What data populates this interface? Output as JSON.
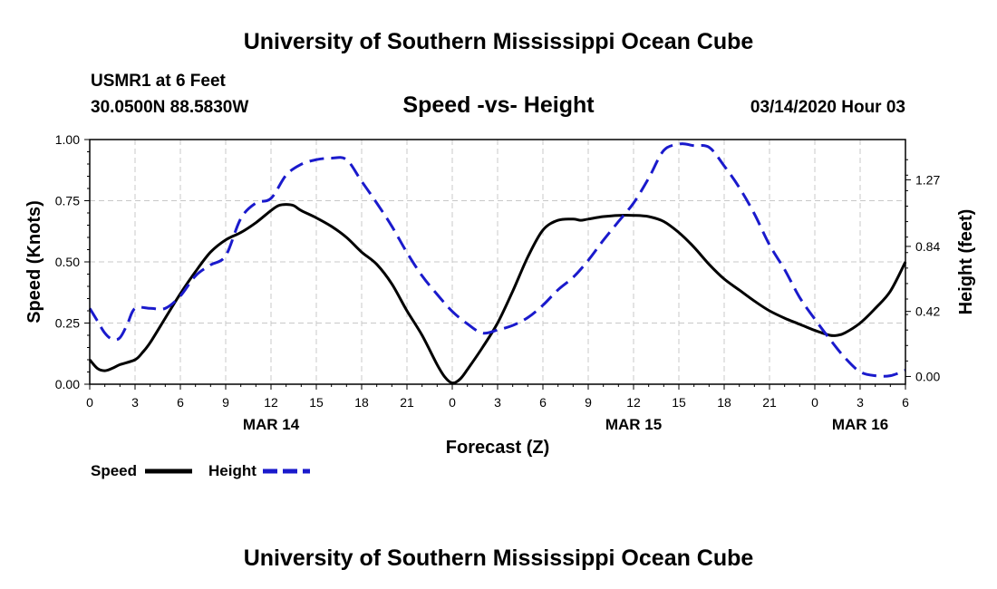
{
  "header": {
    "title": "University of Southern Mississippi Ocean Cube",
    "station": "USMR1 at 6 Feet",
    "coords": "30.0500N 88.5830W",
    "datetime": "03/14/2020 Hour 03"
  },
  "footer": {
    "title": "University of Southern Mississippi Ocean Cube"
  },
  "chart_data": {
    "type": "line",
    "title": "Speed -vs- Height",
    "xlabel": "Forecast (Z)",
    "ylabel": "Speed (Knots)",
    "y2label": "Height (feet)",
    "xlim": [
      0,
      54
    ],
    "ylim": [
      0,
      1.0
    ],
    "y2lim": [
      -0.05,
      1.53
    ],
    "x_ticks": [
      0,
      3,
      6,
      9,
      12,
      15,
      18,
      21,
      24,
      27,
      30,
      33,
      36,
      39,
      42,
      45,
      48,
      51,
      54
    ],
    "x_tick_labels": [
      "0",
      "3",
      "6",
      "9",
      "12",
      "15",
      "18",
      "21",
      "0",
      "3",
      "6",
      "9",
      "12",
      "15",
      "18",
      "21",
      "0",
      "3",
      "6"
    ],
    "y_ticks": [
      0,
      0.25,
      0.5,
      0.75,
      1.0
    ],
    "y_tick_labels": [
      "0.00",
      "0.25",
      "0.50",
      "0.75",
      "1.00"
    ],
    "y2_ticks": [
      0,
      0.42,
      0.84,
      1.27
    ],
    "y2_tick_labels": [
      "0.00",
      "0.42",
      "0.84",
      "1.27"
    ],
    "date_labels": [
      {
        "x": 12,
        "label": "MAR 14"
      },
      {
        "x": 36,
        "label": "MAR 15"
      },
      {
        "x": 51,
        "label": "MAR 16"
      }
    ],
    "grid": true,
    "legend_position": "bottom-left",
    "series": [
      {
        "name": "Speed",
        "axis": "left",
        "color": "#000000",
        "style": "solid",
        "x": [
          0,
          0.5,
          1,
          1.5,
          2,
          3,
          3.5,
          4,
          5,
          6,
          7,
          8,
          9,
          10,
          11,
          12,
          12.5,
          13,
          13.5,
          14,
          15,
          16,
          17,
          18,
          19,
          20,
          21,
          22,
          23,
          23.5,
          24,
          24.5,
          25,
          26,
          27,
          28,
          29,
          30,
          31,
          32,
          32.5,
          33,
          34,
          35,
          36,
          37,
          38,
          39,
          40,
          41,
          42,
          43,
          44,
          45,
          46,
          47,
          48,
          49,
          49.5,
          50,
          51,
          52,
          53,
          54
        ],
        "values": [
          0.1,
          0.065,
          0.055,
          0.065,
          0.08,
          0.1,
          0.13,
          0.17,
          0.27,
          0.37,
          0.46,
          0.54,
          0.59,
          0.62,
          0.66,
          0.71,
          0.73,
          0.735,
          0.73,
          0.71,
          0.68,
          0.645,
          0.6,
          0.54,
          0.49,
          0.41,
          0.3,
          0.2,
          0.08,
          0.03,
          0.005,
          0.02,
          0.06,
          0.15,
          0.25,
          0.38,
          0.52,
          0.63,
          0.67,
          0.675,
          0.67,
          0.675,
          0.685,
          0.69,
          0.69,
          0.685,
          0.665,
          0.62,
          0.56,
          0.49,
          0.43,
          0.385,
          0.34,
          0.3,
          0.27,
          0.245,
          0.22,
          0.2,
          0.2,
          0.21,
          0.25,
          0.31,
          0.38,
          0.5
        ]
      },
      {
        "name": "Height",
        "axis": "right",
        "color": "#1a1acc",
        "style": "dashed",
        "x": [
          0,
          0.5,
          1,
          1.5,
          2,
          2.5,
          3,
          4,
          5,
          6,
          7,
          8,
          9,
          10,
          11,
          12,
          13,
          14,
          15,
          16,
          17,
          18,
          19,
          20,
          21,
          22,
          23,
          24,
          25,
          26,
          27,
          28,
          29,
          30,
          31,
          32,
          33,
          34,
          35,
          36,
          37,
          38,
          39,
          39.5,
          40,
          41,
          42,
          43,
          44,
          45,
          46,
          47,
          48,
          49,
          50,
          51,
          52,
          53,
          54
        ],
        "values": [
          0.44,
          0.36,
          0.28,
          0.24,
          0.25,
          0.34,
          0.44,
          0.44,
          0.44,
          0.52,
          0.65,
          0.72,
          0.78,
          1.02,
          1.12,
          1.15,
          1.3,
          1.37,
          1.4,
          1.41,
          1.4,
          1.26,
          1.12,
          0.97,
          0.8,
          0.65,
          0.53,
          0.42,
          0.34,
          0.28,
          0.3,
          0.33,
          0.38,
          0.46,
          0.56,
          0.64,
          0.75,
          0.88,
          1.0,
          1.12,
          1.28,
          1.46,
          1.5,
          1.5,
          1.49,
          1.48,
          1.36,
          1.22,
          1.05,
          0.85,
          0.69,
          0.51,
          0.37,
          0.24,
          0.12,
          0.03,
          0.005,
          0.005,
          0.04
        ]
      }
    ]
  }
}
